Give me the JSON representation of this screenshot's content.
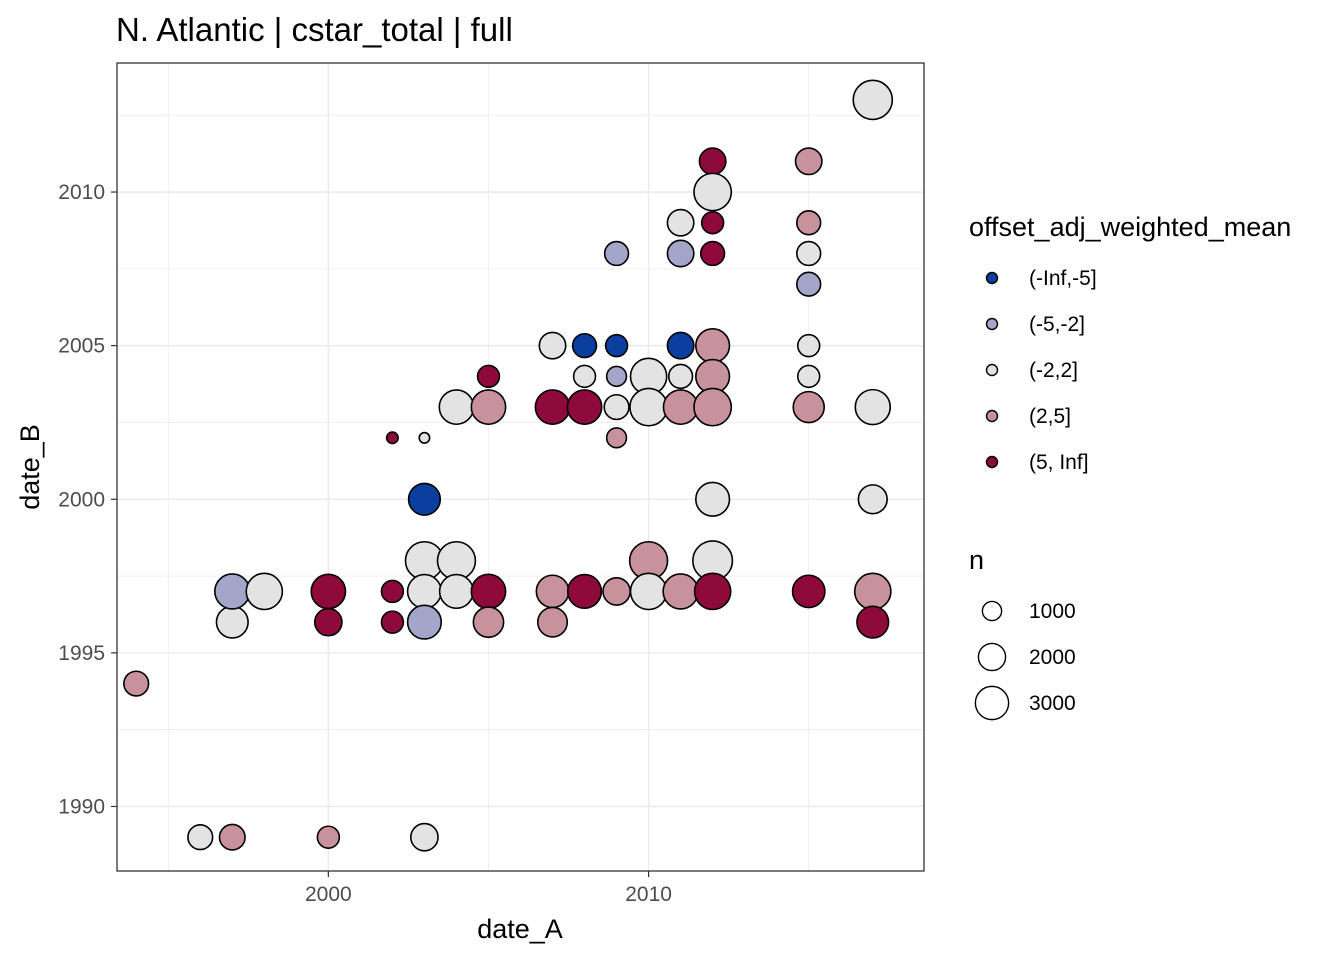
{
  "chart_data": {
    "type": "scatter",
    "title": "N. Atlantic | cstar_total | full",
    "xlabel": "date_A",
    "ylabel": "date_B",
    "xlim": [
      1993.4,
      2018.6
    ],
    "ylim": [
      1987.9,
      2014.2
    ],
    "x_ticks": [
      2000,
      2010
    ],
    "y_ticks": [
      1990,
      1995,
      2000,
      2005,
      2010
    ],
    "grid": true,
    "legend_position": "right",
    "color_legend": {
      "title": "offset_adj_weighted_mean",
      "entries": [
        {
          "label": "(-Inf,-5]",
          "color": "#0a3fa0"
        },
        {
          "label": "(-5,-2]",
          "color": "#a3a6c9"
        },
        {
          "label": "(-2,2]",
          "color": "#e3e3e3"
        },
        {
          "label": "(2,5]",
          "color": "#c8929d"
        },
        {
          "label": "(5, Inf]",
          "color": "#8d0a3a"
        }
      ]
    },
    "size_legend": {
      "title": "n",
      "entries": [
        {
          "label": "1000",
          "value": 1000
        },
        {
          "label": "2000",
          "value": 2000
        },
        {
          "label": "3000",
          "value": 3000
        }
      ]
    },
    "points": [
      {
        "x": 1994,
        "y": 1994,
        "c": "(2,5]",
        "n": 1400
      },
      {
        "x": 1996,
        "y": 1989,
        "c": "(-2,2]",
        "n": 1400
      },
      {
        "x": 1997,
        "y": 1989,
        "c": "(2,5]",
        "n": 1500
      },
      {
        "x": 2000,
        "y": 1989,
        "c": "(2,5]",
        "n": 1100
      },
      {
        "x": 2003,
        "y": 1989,
        "c": "(-2,2]",
        "n": 1700
      },
      {
        "x": 1997,
        "y": 1996,
        "c": "(-2,2]",
        "n": 2300
      },
      {
        "x": 1997,
        "y": 1997,
        "c": "(-5,-2]",
        "n": 2800
      },
      {
        "x": 1998,
        "y": 1997,
        "c": "(-2,2]",
        "n": 3000
      },
      {
        "x": 2000,
        "y": 1996,
        "c": "(5, Inf]",
        "n": 1700
      },
      {
        "x": 2000,
        "y": 1997,
        "c": "(5, Inf]",
        "n": 2700
      },
      {
        "x": 2002,
        "y": 1996,
        "c": "(5, Inf]",
        "n": 1100
      },
      {
        "x": 2002,
        "y": 1997,
        "c": "(5, Inf]",
        "n": 1100
      },
      {
        "x": 2002,
        "y": 2002,
        "c": "(5, Inf]",
        "n": 300
      },
      {
        "x": 2003,
        "y": 2002,
        "c": "(-2,2]",
        "n": 250
      },
      {
        "x": 2003,
        "y": 2000,
        "c": "(-Inf,-5]",
        "n": 2300
      },
      {
        "x": 2003,
        "y": 1998,
        "c": "(-2,2]",
        "n": 3300
      },
      {
        "x": 2003,
        "y": 1997,
        "c": "(-2,2]",
        "n": 2600
      },
      {
        "x": 2003,
        "y": 1996,
        "c": "(-5,-2]",
        "n": 2600
      },
      {
        "x": 2004,
        "y": 2003,
        "c": "(-2,2]",
        "n": 2700
      },
      {
        "x": 2004,
        "y": 1998,
        "c": "(-2,2]",
        "n": 3300
      },
      {
        "x": 2004,
        "y": 1997,
        "c": "(-2,2]",
        "n": 2600
      },
      {
        "x": 2005,
        "y": 2004,
        "c": "(5, Inf]",
        "n": 1100
      },
      {
        "x": 2005,
        "y": 2003,
        "c": "(2,5]",
        "n": 2700
      },
      {
        "x": 2005,
        "y": 1997,
        "c": "(5, Inf]",
        "n": 2700
      },
      {
        "x": 2005,
        "y": 1996,
        "c": "(2,5]",
        "n": 2100
      },
      {
        "x": 2007,
        "y": 2005,
        "c": "(-2,2]",
        "n": 1600
      },
      {
        "x": 2007,
        "y": 2003,
        "c": "(5, Inf]",
        "n": 2700
      },
      {
        "x": 2007,
        "y": 1997,
        "c": "(2,5]",
        "n": 2400
      },
      {
        "x": 2007,
        "y": 1996,
        "c": "(2,5]",
        "n": 2000
      },
      {
        "x": 2008,
        "y": 2005,
        "c": "(-Inf,-5]",
        "n": 1300
      },
      {
        "x": 2008,
        "y": 2004,
        "c": "(-2,2]",
        "n": 1100
      },
      {
        "x": 2008,
        "y": 2003,
        "c": "(5, Inf]",
        "n": 2700
      },
      {
        "x": 2008,
        "y": 1997,
        "c": "(5, Inf]",
        "n": 2600
      },
      {
        "x": 2009,
        "y": 2008,
        "c": "(-5,-2]",
        "n": 1300
      },
      {
        "x": 2009,
        "y": 2005,
        "c": "(-Inf,-5]",
        "n": 1100
      },
      {
        "x": 2009,
        "y": 2004,
        "c": "(-5,-2]",
        "n": 900
      },
      {
        "x": 2009,
        "y": 2003,
        "c": "(-2,2]",
        "n": 1400
      },
      {
        "x": 2009,
        "y": 2002,
        "c": "(2,5]",
        "n": 900
      },
      {
        "x": 2009,
        "y": 1997,
        "c": "(2,5]",
        "n": 1700
      },
      {
        "x": 2010,
        "y": 2004,
        "c": "(-2,2]",
        "n": 3000
      },
      {
        "x": 2010,
        "y": 2003,
        "c": "(-2,2]",
        "n": 3200
      },
      {
        "x": 2010,
        "y": 1998,
        "c": "(2,5]",
        "n": 3300
      },
      {
        "x": 2010,
        "y": 1997,
        "c": "(-2,2]",
        "n": 3000
      },
      {
        "x": 2011,
        "y": 2009,
        "c": "(-2,2]",
        "n": 1600
      },
      {
        "x": 2011,
        "y": 2008,
        "c": "(-5,-2]",
        "n": 1600
      },
      {
        "x": 2011,
        "y": 2005,
        "c": "(-Inf,-5]",
        "n": 1600
      },
      {
        "x": 2011,
        "y": 2004,
        "c": "(-2,2]",
        "n": 1300
      },
      {
        "x": 2011,
        "y": 2003,
        "c": "(2,5]",
        "n": 2700
      },
      {
        "x": 2011,
        "y": 1997,
        "c": "(2,5]",
        "n": 2800
      },
      {
        "x": 2012,
        "y": 2011,
        "c": "(5, Inf]",
        "n": 1600
      },
      {
        "x": 2012,
        "y": 2010,
        "c": "(-2,2]",
        "n": 3200
      },
      {
        "x": 2012,
        "y": 2009,
        "c": "(5, Inf]",
        "n": 1100
      },
      {
        "x": 2012,
        "y": 2008,
        "c": "(5, Inf]",
        "n": 1300
      },
      {
        "x": 2012,
        "y": 2005,
        "c": "(2,5]",
        "n": 2600
      },
      {
        "x": 2012,
        "y": 2004,
        "c": "(2,5]",
        "n": 2600
      },
      {
        "x": 2012,
        "y": 2003,
        "c": "(2,5]",
        "n": 3200
      },
      {
        "x": 2012,
        "y": 2000,
        "c": "(-2,2]",
        "n": 2600
      },
      {
        "x": 2012,
        "y": 1998,
        "c": "(-2,2]",
        "n": 3600
      },
      {
        "x": 2012,
        "y": 1997,
        "c": "(5, Inf]",
        "n": 3000
      },
      {
        "x": 2015,
        "y": 2011,
        "c": "(2,5]",
        "n": 1600
      },
      {
        "x": 2015,
        "y": 2009,
        "c": "(2,5]",
        "n": 1300
      },
      {
        "x": 2015,
        "y": 2008,
        "c": "(-2,2]",
        "n": 1300
      },
      {
        "x": 2015,
        "y": 2007,
        "c": "(-5,-2]",
        "n": 1300
      },
      {
        "x": 2015,
        "y": 2005,
        "c": "(-2,2]",
        "n": 1100
      },
      {
        "x": 2015,
        "y": 2004,
        "c": "(-2,2]",
        "n": 1100
      },
      {
        "x": 2015,
        "y": 2003,
        "c": "(2,5]",
        "n": 2200
      },
      {
        "x": 2015,
        "y": 1997,
        "c": "(5, Inf]",
        "n": 2400
      },
      {
        "x": 2017,
        "y": 2013,
        "c": "(-2,2]",
        "n": 3500
      },
      {
        "x": 2017,
        "y": 2003,
        "c": "(-2,2]",
        "n": 2800
      },
      {
        "x": 2017,
        "y": 2000,
        "c": "(-2,2]",
        "n": 1900
      },
      {
        "x": 2017,
        "y": 1997,
        "c": "(2,5]",
        "n": 3000
      },
      {
        "x": 2017,
        "y": 1996,
        "c": "(5, Inf]",
        "n": 2300
      }
    ]
  }
}
